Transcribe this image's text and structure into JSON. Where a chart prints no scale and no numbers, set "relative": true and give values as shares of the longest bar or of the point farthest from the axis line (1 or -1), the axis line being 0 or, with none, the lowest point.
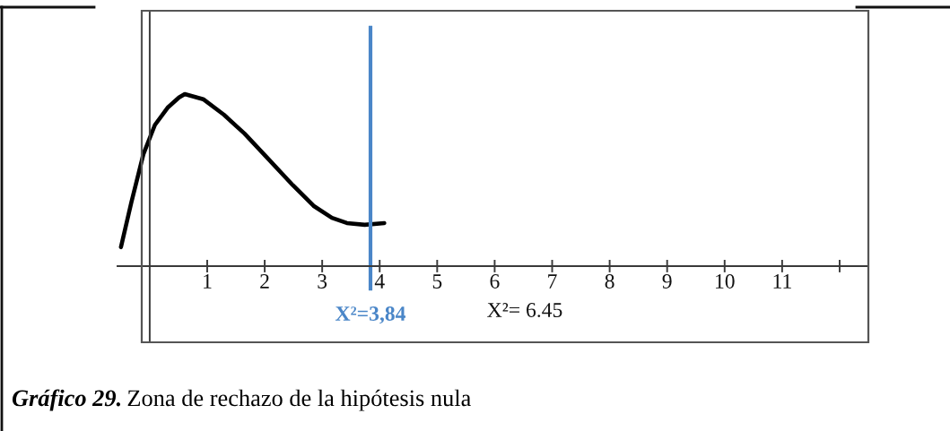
{
  "chart_data": {
    "type": "line",
    "relative": true,
    "color": "#000000",
    "x": [
      -0.5,
      -0.32,
      -0.11,
      0.09,
      0.31,
      0.51,
      0.61,
      0.93,
      1.29,
      1.65,
      2.07,
      2.49,
      2.85,
      3.17,
      3.43,
      3.74,
      4.08
    ],
    "values": [
      0.11,
      0.37,
      0.65,
      0.82,
      0.92,
      0.98,
      1,
      0.97,
      0.88,
      0.77,
      0.62,
      0.47,
      0.35,
      0.28,
      0.25,
      0.24,
      0.25
    ],
    "xlim": [
      -0.56,
      12.5
    ],
    "xticks": [
      1,
      2,
      3,
      4,
      5,
      6,
      7,
      8,
      9,
      10,
      11,
      {
        "value": 12,
        "label": null
      }
    ],
    "tick_labels": "x",
    "ref_lines": [
      {
        "axis": "x",
        "value": 3.84,
        "label": "X²=3,84",
        "color": "#4a86c8"
      }
    ],
    "annotations": [
      "X²= 6.45"
    ],
    "title": "Gráfico 29.",
    "subtitle": "Zona de rechazo de la hipótesis nula"
  }
}
